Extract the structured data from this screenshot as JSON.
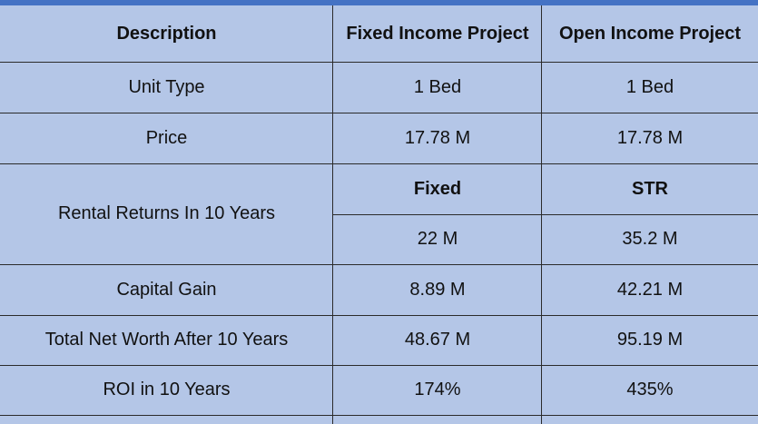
{
  "table": {
    "headers": [
      "Description",
      "Fixed Income Project",
      "Open Income Project"
    ],
    "rows": [
      {
        "label": "Unit Type",
        "fixed": "1 Bed",
        "open": "1 Bed"
      },
      {
        "label": "Price",
        "fixed": "17.78 M",
        "open": "17.78 M"
      },
      {
        "label": "Rental Returns In 10 Years",
        "fixed_sub": "Fixed",
        "open_sub": "STR",
        "fixed": "22 M",
        "open": "35.2 M"
      },
      {
        "label": "Capital Gain",
        "fixed": "8.89 M",
        "open": "42.21 M"
      },
      {
        "label": "Total Net Worth After 10 Years",
        "fixed": "48.67 M",
        "open": "95.19 M"
      },
      {
        "label": "ROI in 10 Years",
        "fixed": "174%",
        "open": "435%"
      }
    ]
  },
  "colors": {
    "cell_background": "#b4c6e7",
    "header_accent": "#4472c4",
    "grid_line": "#2b2b2b"
  }
}
